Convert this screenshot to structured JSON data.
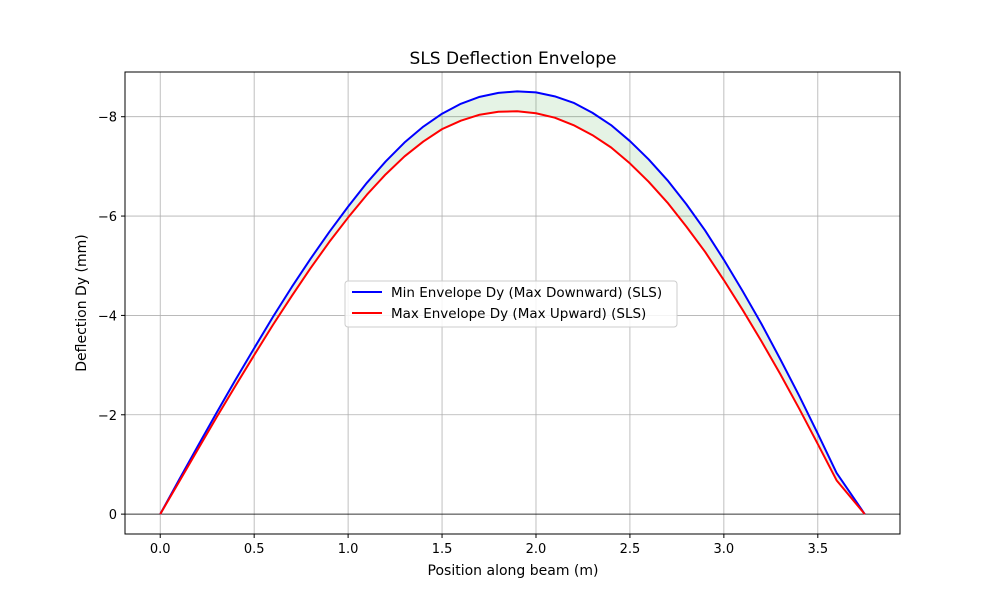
{
  "chart_data": {
    "type": "line",
    "title": "SLS Deflection Envelope",
    "xlabel": "Position along beam (m)",
    "ylabel": "Deflection Dy (mm)",
    "xlim": [
      -0.1875,
      3.9375
    ],
    "ylim": [
      0.4,
      -8.9
    ],
    "y_axis_inverted": true,
    "grid": true,
    "zero_line": true,
    "legend_position": "center",
    "fill_between_series": true,
    "fill_color": "#2ca02c",
    "x_ticks": [
      0.0,
      0.5,
      1.0,
      1.5,
      2.0,
      2.5,
      3.0,
      3.5
    ],
    "x_tick_labels": [
      "0.0",
      "0.5",
      "1.0",
      "1.5",
      "2.0",
      "2.5",
      "3.0",
      "3.5"
    ],
    "y_ticks": [
      -8,
      -6,
      -4,
      -2,
      0
    ],
    "y_tick_labels": [
      "−8",
      "−6",
      "−4",
      "−2",
      "0"
    ],
    "x": [
      0.0,
      0.1,
      0.2,
      0.3,
      0.4,
      0.5,
      0.6,
      0.7,
      0.8,
      0.9,
      1.0,
      1.1,
      1.2,
      1.3,
      1.4,
      1.5,
      1.6,
      1.7,
      1.8,
      1.9,
      2.0,
      2.1,
      2.2,
      2.3,
      2.4,
      2.5,
      2.6,
      2.7,
      2.8,
      2.9,
      3.0,
      3.1,
      3.2,
      3.3,
      3.4,
      3.5,
      3.6,
      3.75
    ],
    "series": [
      {
        "name": "Min Envelope Dy (Max Downward) (SLS)",
        "color": "#0000ff",
        "values": [
          0.0,
          -0.69,
          -1.37,
          -2.04,
          -2.7,
          -3.34,
          -3.97,
          -4.57,
          -5.14,
          -5.68,
          -6.19,
          -6.67,
          -7.1,
          -7.48,
          -7.8,
          -8.06,
          -8.26,
          -8.4,
          -8.48,
          -8.51,
          -8.49,
          -8.41,
          -8.28,
          -8.08,
          -7.83,
          -7.51,
          -7.14,
          -6.72,
          -6.24,
          -5.71,
          -5.12,
          -4.49,
          -3.83,
          -3.12,
          -2.39,
          -1.62,
          -0.83,
          0.0
        ]
      },
      {
        "name": "Max Envelope Dy (Max Upward) (SLS)",
        "color": "#ff0000",
        "values": [
          0.0,
          -0.65,
          -1.3,
          -1.95,
          -2.58,
          -3.2,
          -3.81,
          -4.39,
          -4.95,
          -5.48,
          -5.97,
          -6.43,
          -6.84,
          -7.2,
          -7.5,
          -7.75,
          -7.92,
          -8.04,
          -8.1,
          -8.11,
          -8.07,
          -7.98,
          -7.83,
          -7.63,
          -7.38,
          -7.06,
          -6.69,
          -6.27,
          -5.79,
          -5.28,
          -4.71,
          -4.11,
          -3.48,
          -2.82,
          -2.13,
          -1.41,
          -0.68,
          0.0
        ]
      }
    ]
  }
}
